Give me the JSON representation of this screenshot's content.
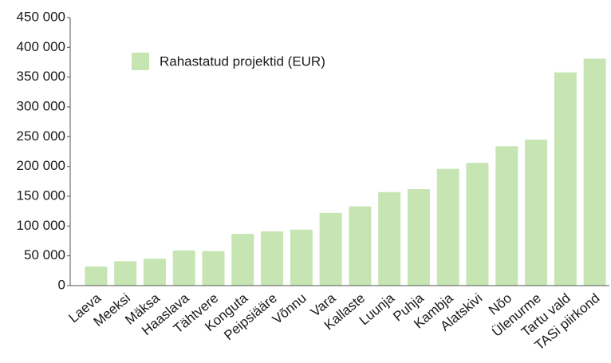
{
  "chart_data": {
    "type": "bar",
    "categories": [
      "Laeva",
      "Meeksi",
      "Mäksa",
      "Haaslava",
      "Tähtvere",
      "Konguta",
      "Peipsiääre",
      "Võnnu",
      "Vara",
      "Kallaste",
      "Luunja",
      "Puhja",
      "Kambja",
      "Alatskivi",
      "Nõo",
      "Ülenurme",
      "Tartu vald",
      "TASi piirkond"
    ],
    "series": [
      {
        "name": "Rahastatud projektid (EUR)",
        "color": "#c6e5b3",
        "values": [
          32000,
          41000,
          45000,
          59000,
          58000,
          87000,
          91000,
          94000,
          122000,
          133000,
          157000,
          162000,
          196000,
          206000,
          234000,
          245000,
          358000,
          381000
        ]
      }
    ],
    "ylim": [
      0,
      450000
    ],
    "yticks": [
      0,
      {
        "value": 50000,
        "label": "50 000"
      },
      {
        "value": 100000,
        "label": "100 000"
      },
      {
        "value": 150000,
        "label": "150 000"
      },
      {
        "value": 200000,
        "label": "200 000"
      },
      {
        "value": 250000,
        "label": "250 000"
      },
      {
        "value": 300000,
        "label": "300 000"
      },
      {
        "value": 350000,
        "label": "350 000"
      },
      {
        "value": 400000,
        "label": "400 000"
      },
      {
        "value": 450000,
        "label": "450 000"
      }
    ],
    "legend": "top-left",
    "grid": false
  }
}
